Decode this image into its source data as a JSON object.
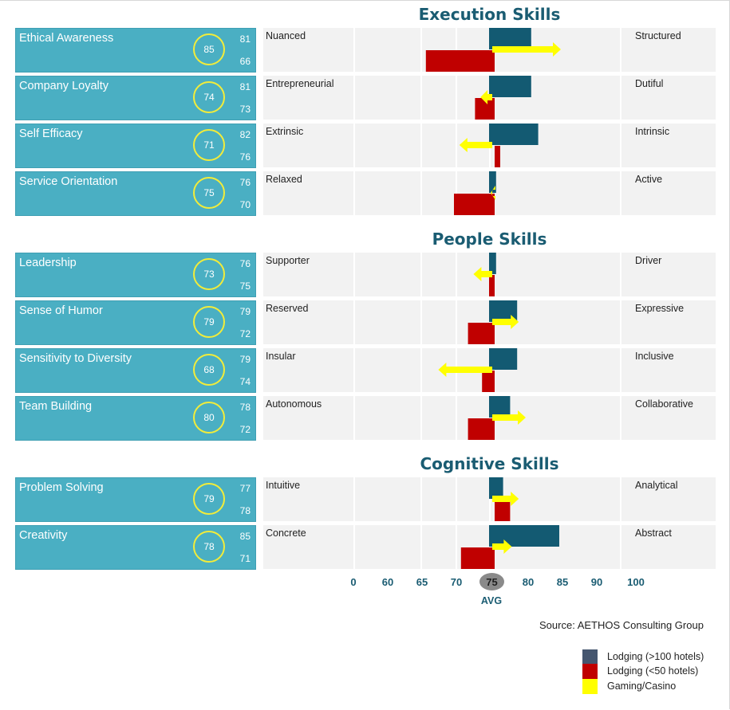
{
  "sections": [
    {
      "title": "Execution Skills"
    },
    {
      "title": "People Skills"
    },
    {
      "title": "Cognitive Skills"
    }
  ],
  "skills": [
    {
      "name": "Ethical Awareness",
      "circle": "85",
      "v1": "81",
      "v2": "66",
      "left_trait": "Nuanced",
      "right_trait": "Structured"
    },
    {
      "name": "Company Loyalty",
      "circle": "74",
      "v1": "81",
      "v2": "73",
      "left_trait": "Entrepreneurial",
      "right_trait": "Dutiful"
    },
    {
      "name": "Self Efficacy",
      "circle": "71",
      "v1": "82",
      "v2": "76",
      "left_trait": "Extrinsic",
      "right_trait": "Intrinsic"
    },
    {
      "name": "Service Orientation",
      "circle": "75",
      "v1": "76",
      "v2": "70",
      "left_trait": "Relaxed",
      "right_trait": "Active"
    },
    {
      "name": "Leadership",
      "circle": "73",
      "v1": "76",
      "v2": "75",
      "left_trait": "Supporter",
      "right_trait": "Driver"
    },
    {
      "name": "Sense of Humor",
      "circle": "79",
      "v1": "79",
      "v2": "72",
      "left_trait": "Reserved",
      "right_trait": "Expressive"
    },
    {
      "name": "Sensitivity to Diversity",
      "circle": "68",
      "v1": "79",
      "v2": "74",
      "left_trait": "Insular",
      "right_trait": "Inclusive"
    },
    {
      "name": "Team Building",
      "circle": "80",
      "v1": "78",
      "v2": "72",
      "left_trait": "Autonomous",
      "right_trait": "Collaborative"
    },
    {
      "name": "Problem Solving",
      "circle": "79",
      "v1": "77",
      "v2": "78",
      "left_trait": "Intuitive",
      "right_trait": "Analytical"
    },
    {
      "name": "Creativity",
      "circle": "78",
      "v1": "85",
      "v2": "71",
      "left_trait": "Concrete",
      "right_trait": "Abstract"
    }
  ],
  "axis": {
    "ticks": [
      "0",
      "60",
      "65",
      "70",
      "75",
      "80",
      "85",
      "90",
      "100"
    ],
    "avg_value": "75",
    "avg_label": "AVG"
  },
  "source": "Source: AETHOS Consulting Group",
  "legend": [
    {
      "label": "Lodging (>100 hotels)",
      "color": "#45566f"
    },
    {
      "label": "Lodging (<50 hotels)",
      "color": "#c00000"
    },
    {
      "label": "Gaming/Casino",
      "color": "#ffff00"
    }
  ],
  "colors": {
    "lodging_large_bar": "#135a72",
    "lodging_small_bar": "#c00000",
    "gaming_arrow": "#ffff00",
    "skill_box": "#4aafc3",
    "circle_border": "#f2ec3a",
    "panel_bg": "#f2f2f2",
    "title": "#1a5c72"
  },
  "chart_data": {
    "type": "bar",
    "baseline": 75,
    "tick_values": [
      0,
      60,
      65,
      70,
      75,
      80,
      85,
      90,
      100
    ],
    "categories": [
      "Ethical Awareness",
      "Company Loyalty",
      "Self Efficacy",
      "Service Orientation",
      "Leadership",
      "Sense of Humor",
      "Sensitivity to Diversity",
      "Team Building",
      "Problem Solving",
      "Creativity"
    ],
    "series": [
      {
        "name": "Lodging (>100 hotels)",
        "values": [
          81,
          81,
          82,
          76,
          76,
          79,
          79,
          78,
          77,
          85
        ]
      },
      {
        "name": "Lodging (<50 hotels)",
        "values": [
          66,
          73,
          76,
          70,
          75,
          72,
          74,
          72,
          78,
          71
        ]
      },
      {
        "name": "Gaming/Casino",
        "values": [
          85,
          74,
          71,
          75,
          73,
          79,
          68,
          80,
          79,
          78
        ]
      }
    ]
  }
}
